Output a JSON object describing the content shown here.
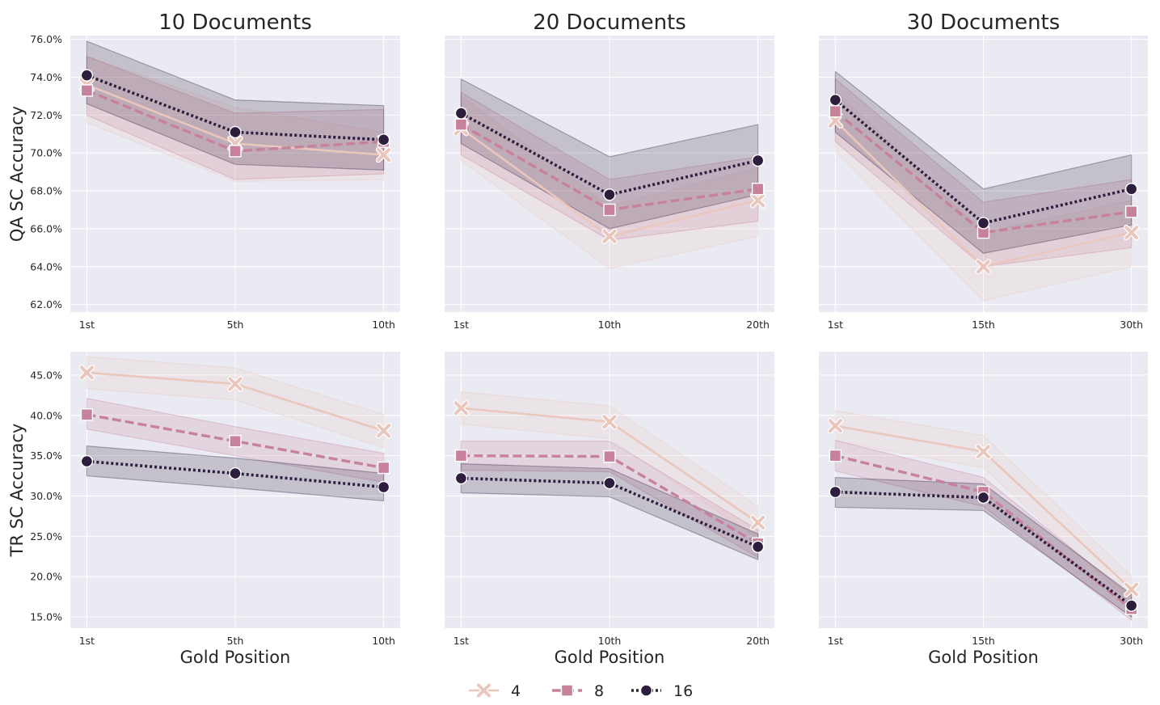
{
  "legend": [
    {
      "label": "4",
      "color": "#eac7bd",
      "marker": "x",
      "dash": "solid"
    },
    {
      "label": "8",
      "color": "#c8819b",
      "marker": "square",
      "dash": "dashed"
    },
    {
      "label": "16",
      "color": "#2d1e3e",
      "marker": "circle",
      "dash": "dotted"
    }
  ],
  "chart_data": [
    {
      "type": "line",
      "title": "10 Documents",
      "xlabel": "",
      "ylabel": "QA SC Accuracy",
      "categories": [
        "1st",
        "5th",
        "10th"
      ],
      "yticks": [
        62,
        64,
        66,
        68,
        70,
        72,
        74,
        76
      ],
      "ytick_labels": [
        "62.0%",
        "64.0%",
        "66.0%",
        "68.0%",
        "70.0%",
        "72.0%",
        "74.0%",
        "76.0%"
      ],
      "ylim": [
        61.6,
        76.2
      ],
      "grid": true,
      "series": [
        {
          "name": "4",
          "values": [
            73.6,
            70.5,
            69.9
          ],
          "ci_low": [
            71.6,
            68.5,
            68.6
          ],
          "ci_high": [
            75.1,
            72.4,
            71.1
          ]
        },
        {
          "name": "8",
          "values": [
            73.3,
            70.1,
            70.6
          ],
          "ci_low": [
            72.0,
            68.6,
            68.9
          ],
          "ci_high": [
            75.1,
            72.1,
            72.3
          ]
        },
        {
          "name": "16",
          "values": [
            74.1,
            71.1,
            70.7
          ],
          "ci_low": [
            72.6,
            69.4,
            69.1
          ],
          "ci_high": [
            75.9,
            72.8,
            72.5
          ]
        }
      ]
    },
    {
      "type": "line",
      "title": "20 Documents",
      "xlabel": "",
      "ylabel": "",
      "categories": [
        "1st",
        "10th",
        "20th"
      ],
      "ylim": [
        61.6,
        76.2
      ],
      "grid": true,
      "series": [
        {
          "name": "4",
          "values": [
            71.3,
            65.6,
            67.5
          ],
          "ci_low": [
            69.6,
            63.9,
            65.6
          ],
          "ci_high": [
            73.0,
            67.2,
            69.2
          ]
        },
        {
          "name": "8",
          "values": [
            71.5,
            67.0,
            68.1
          ],
          "ci_low": [
            69.9,
            65.4,
            66.4
          ],
          "ci_high": [
            73.2,
            68.6,
            69.8
          ]
        },
        {
          "name": "16",
          "values": [
            72.1,
            67.8,
            69.6
          ],
          "ci_low": [
            70.5,
            66.0,
            67.8
          ],
          "ci_high": [
            73.9,
            69.8,
            71.5
          ]
        }
      ]
    },
    {
      "type": "line",
      "title": "30 Documents",
      "xlabel": "",
      "ylabel": "",
      "categories": [
        "1st",
        "15th",
        "30th"
      ],
      "ylim": [
        61.6,
        76.2
      ],
      "grid": true,
      "series": [
        {
          "name": "4",
          "values": [
            71.7,
            64.0,
            65.8
          ],
          "ci_low": [
            70.1,
            62.2,
            64.0
          ],
          "ci_high": [
            73.3,
            65.8,
            67.5
          ]
        },
        {
          "name": "8",
          "values": [
            72.2,
            65.8,
            66.9
          ],
          "ci_low": [
            70.6,
            64.0,
            65.0
          ],
          "ci_high": [
            73.9,
            67.4,
            68.6
          ]
        },
        {
          "name": "16",
          "values": [
            72.8,
            66.3,
            68.1
          ],
          "ci_low": [
            71.1,
            64.7,
            66.2
          ],
          "ci_high": [
            74.3,
            68.1,
            69.9
          ]
        }
      ]
    },
    {
      "type": "line",
      "title": "",
      "xlabel": "Gold Position",
      "ylabel": "TR SC Accuracy",
      "categories": [
        "1st",
        "5th",
        "10th"
      ],
      "yticks": [
        15,
        20,
        25,
        30,
        35,
        40,
        45
      ],
      "ytick_labels": [
        "15.0%",
        "20.0%",
        "25.0%",
        "30.0%",
        "35.0%",
        "40.0%",
        "45.0%"
      ],
      "ylim": [
        13.6,
        47.9
      ],
      "grid": true,
      "series": [
        {
          "name": "4",
          "values": [
            45.3,
            43.9,
            38.1
          ],
          "ci_low": [
            43.3,
            41.9,
            36.0
          ],
          "ci_high": [
            47.3,
            45.9,
            40.1
          ]
        },
        {
          "name": "8",
          "values": [
            40.1,
            36.8,
            33.5
          ],
          "ci_low": [
            38.3,
            35.0,
            31.7
          ],
          "ci_high": [
            42.1,
            38.6,
            35.3
          ]
        },
        {
          "name": "16",
          "values": [
            34.3,
            32.8,
            31.1
          ],
          "ci_low": [
            32.5,
            31.0,
            29.4
          ],
          "ci_high": [
            36.2,
            34.7,
            32.8
          ]
        }
      ]
    },
    {
      "type": "line",
      "title": "",
      "xlabel": "Gold Position",
      "ylabel": "",
      "categories": [
        "1st",
        "10th",
        "20th"
      ],
      "ylim": [
        13.6,
        47.9
      ],
      "grid": true,
      "series": [
        {
          "name": "4",
          "values": [
            40.9,
            39.2,
            26.7
          ],
          "ci_low": [
            38.9,
            37.1,
            24.7
          ],
          "ci_high": [
            42.9,
            41.2,
            28.7
          ]
        },
        {
          "name": "8",
          "values": [
            35.0,
            34.9,
            24.1
          ],
          "ci_low": [
            33.2,
            33.0,
            22.4
          ],
          "ci_high": [
            36.8,
            36.8,
            25.8
          ]
        },
        {
          "name": "16",
          "values": [
            32.2,
            31.6,
            23.7
          ],
          "ci_low": [
            30.4,
            29.9,
            22.1
          ],
          "ci_high": [
            34.0,
            33.4,
            25.3
          ]
        }
      ]
    },
    {
      "type": "line",
      "title": "",
      "xlabel": "Gold Position",
      "ylabel": "",
      "categories": [
        "1st",
        "15th",
        "30th"
      ],
      "ylim": [
        13.6,
        47.9
      ],
      "grid": true,
      "series": [
        {
          "name": "4",
          "values": [
            38.7,
            35.5,
            18.4
          ],
          "ci_low": [
            36.8,
            33.5,
            16.7
          ],
          "ci_high": [
            40.6,
            37.5,
            20.1
          ]
        },
        {
          "name": "8",
          "values": [
            35.0,
            30.5,
            16.0
          ],
          "ci_low": [
            33.1,
            28.7,
            14.6
          ],
          "ci_high": [
            36.9,
            32.3,
            17.5
          ]
        },
        {
          "name": "16",
          "values": [
            30.5,
            29.8,
            16.4
          ],
          "ci_low": [
            28.6,
            28.2,
            15.0
          ],
          "ci_high": [
            32.3,
            31.5,
            17.8
          ]
        }
      ]
    }
  ]
}
